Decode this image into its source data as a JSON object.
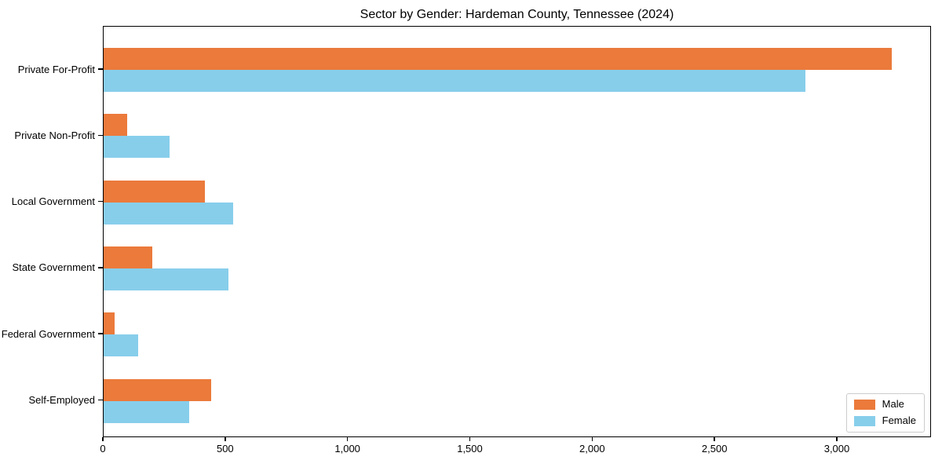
{
  "chart_data": {
    "type": "bar",
    "orientation": "horizontal",
    "title": "Sector by Gender: Hardeman County, Tennessee (2024)",
    "categories": [
      "Private For-Profit",
      "Private Non-Profit",
      "Local Government",
      "State Government",
      "Federal Government",
      "Self-Employed"
    ],
    "series": [
      {
        "name": "Male",
        "color": "#EB7A3B",
        "values": [
          3220,
          95,
          415,
          200,
          44,
          440
        ]
      },
      {
        "name": "Female",
        "color": "#87CEEB",
        "values": [
          2870,
          270,
          530,
          510,
          140,
          350
        ]
      }
    ],
    "xlabel": "",
    "ylabel": "",
    "xlim": [
      0,
      3385
    ],
    "xticks": [
      0,
      500,
      1000,
      1500,
      2000,
      2500,
      3000
    ],
    "xtick_labels": [
      "0",
      "500",
      "1,000",
      "1,500",
      "2,000",
      "2,500",
      "3,000"
    ],
    "grid": false,
    "legend": {
      "position": "lower right",
      "labels": [
        "Male",
        "Female"
      ]
    },
    "colors": {
      "axis": "#000000",
      "background": "#ffffff",
      "legend_border": "#cccccc"
    }
  }
}
